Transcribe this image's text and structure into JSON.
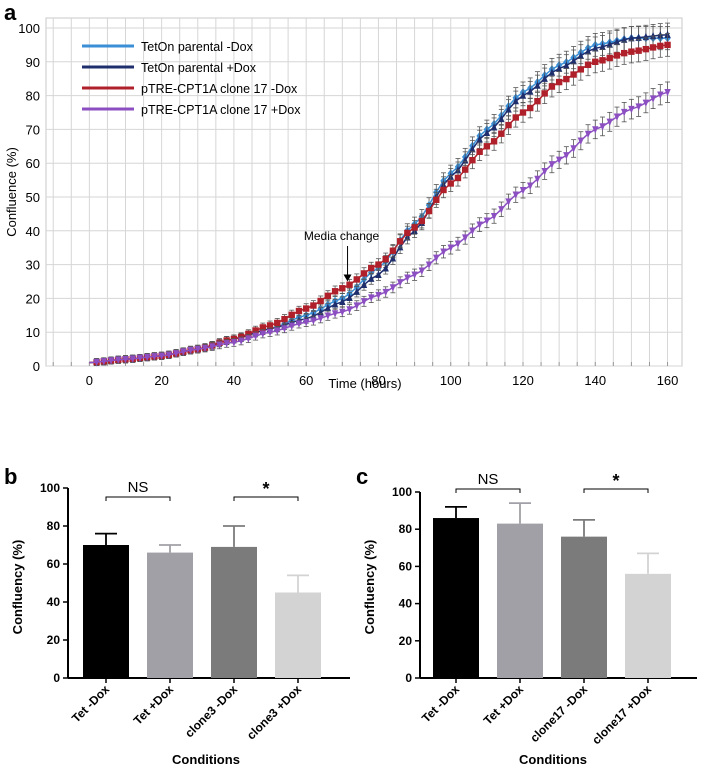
{
  "panel_letters": [
    "a",
    "b",
    "c"
  ],
  "colors": {
    "tet_minus": "#3a8fd6",
    "tet_plus": "#1f2f6e",
    "clone_minus": "#b0202a",
    "clone_plus": "#8c4fc2",
    "grid": "#d6d6d6",
    "bar_black": "#000000",
    "bar_mid": "#a0a0a6",
    "bar_dark": "#7b7b7b",
    "bar_light": "#d3d3d3"
  },
  "chart_data": [
    {
      "id": "a",
      "type": "line",
      "title": "",
      "xlabel": "Time (hours)",
      "ylabel": "Confluence (%)",
      "xlim": [
        -12,
        164
      ],
      "ylim": [
        0,
        100
      ],
      "xticks": [
        0,
        20,
        40,
        60,
        80,
        100,
        120,
        140,
        160
      ],
      "yticks": [
        0,
        10,
        20,
        30,
        40,
        50,
        60,
        70,
        80,
        90,
        100
      ],
      "grid": true,
      "legend_position": "top-left",
      "annotation": {
        "text": "Media change",
        "x": 72,
        "y": 23
      },
      "x": [
        0,
        10,
        20,
        30,
        40,
        50,
        60,
        70,
        80,
        90,
        100,
        110,
        120,
        130,
        140,
        150,
        160
      ],
      "series": [
        {
          "name": "TetOn parental -Dox",
          "color_key": "tet_minus",
          "marker": "diamond",
          "sd": 2.5,
          "values": [
            1,
            2,
            3,
            5,
            8,
            11,
            15,
            20,
            29,
            42,
            57,
            70,
            81,
            89,
            95,
            97,
            97
          ]
        },
        {
          "name": "TetOn parental +Dox",
          "color_key": "tet_plus",
          "marker": "triangle-up",
          "sd": 2.5,
          "values": [
            1,
            2,
            3,
            5,
            8,
            11,
            14,
            19,
            27,
            40,
            56,
            69,
            80,
            88,
            94,
            97,
            98
          ]
        },
        {
          "name": "pTRE-CPT1A clone 17 -Dox",
          "color_key": "clone_minus",
          "marker": "square",
          "sd": 2.5,
          "values": [
            1,
            2,
            3,
            5,
            8,
            12,
            17,
            23,
            30,
            41,
            54,
            65,
            75,
            84,
            90,
            93,
            95
          ]
        },
        {
          "name": "pTRE-CPT1A clone 17 +Dox",
          "color_key": "clone_plus",
          "marker": "triangle-down",
          "sd": 2.5,
          "values": [
            1,
            2,
            3,
            5,
            7,
            10,
            13,
            16,
            21,
            27,
            35,
            43,
            52,
            61,
            70,
            76,
            81
          ]
        }
      ]
    },
    {
      "id": "b",
      "type": "bar",
      "title": "",
      "xlabel": "Conditions",
      "ylabel": "Confluency (%)",
      "ylim": [
        0,
        100
      ],
      "yticks": [
        0,
        20,
        40,
        60,
        80,
        100
      ],
      "categories": [
        "Tet -Dox",
        "Tet +Dox",
        "clone3 -Dox",
        "clone3 +Dox"
      ],
      "values": [
        70,
        66,
        69,
        45
      ],
      "errors": [
        6,
        4,
        11,
        9
      ],
      "fills": [
        "bar_black",
        "bar_mid",
        "bar_dark",
        "bar_light"
      ],
      "significance": [
        {
          "from": 0,
          "to": 1,
          "label": "NS"
        },
        {
          "from": 2,
          "to": 3,
          "label": "*"
        }
      ]
    },
    {
      "id": "c",
      "type": "bar",
      "title": "",
      "xlabel": "Conditions",
      "ylabel": "Confluency (%)",
      "ylim": [
        0,
        100
      ],
      "yticks": [
        0,
        20,
        40,
        60,
        80,
        100
      ],
      "categories": [
        "Tet -Dox",
        "Tet +Dox",
        "clone17 -Dox",
        "clone17 +Dox"
      ],
      "values": [
        86,
        83,
        76,
        56
      ],
      "errors": [
        6,
        11,
        9,
        11
      ],
      "fills": [
        "bar_black",
        "bar_mid",
        "bar_dark",
        "bar_light"
      ],
      "significance": [
        {
          "from": 0,
          "to": 1,
          "label": "NS"
        },
        {
          "from": 2,
          "to": 3,
          "label": "*"
        }
      ]
    }
  ]
}
